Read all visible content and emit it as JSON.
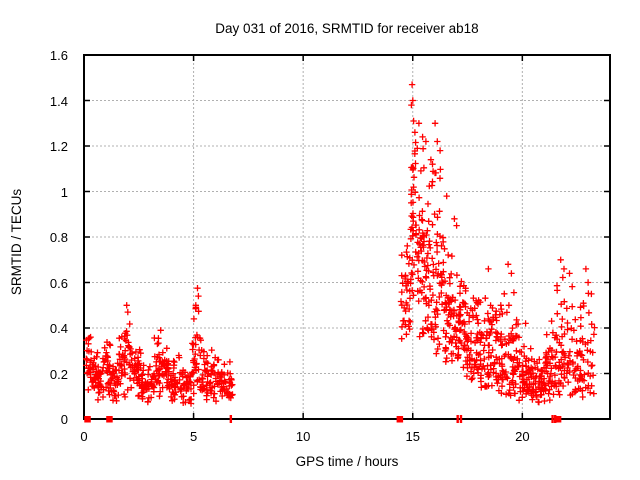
{
  "title": "Day 031 of 2016, SRMTID for receiver ab18",
  "x_axis": {
    "label": "GPS time / hours",
    "min": 0,
    "max": 24,
    "ticks": [
      {
        "v": 0,
        "label": "0"
      },
      {
        "v": 5,
        "label": "5"
      },
      {
        "v": 10,
        "label": "10"
      },
      {
        "v": 15,
        "label": "15"
      },
      {
        "v": 20,
        "label": "20"
      }
    ]
  },
  "y_axis": {
    "label": "SRMTID / TECUs",
    "min": 0,
    "max": 1.6,
    "ticks": [
      {
        "v": 0,
        "label": "0"
      },
      {
        "v": 0.2,
        "label": "0.2"
      },
      {
        "v": 0.4,
        "label": "0.4"
      },
      {
        "v": 0.6,
        "label": "0.6"
      },
      {
        "v": 0.8,
        "label": "0.8"
      },
      {
        "v": 1,
        "label": "1"
      },
      {
        "v": 1.2,
        "label": "1.2"
      },
      {
        "v": 1.4,
        "label": "1.4"
      },
      {
        "v": 1.6,
        "label": "1.6"
      }
    ]
  },
  "style": {
    "marker_color": "#ff0000",
    "grid_color": "#b0b0b0",
    "axis_color": "#000000",
    "background": "#ffffff"
  },
  "chart_data": {
    "type": "scatter",
    "title": "Day 031 of 2016, SRMTID for receiver ab18",
    "xlabel": "GPS time / hours",
    "ylabel": "SRMTID / TECUs",
    "xlim": [
      0,
      24
    ],
    "ylim": [
      0,
      1.6
    ],
    "grid": true,
    "legend": false,
    "marker": "plus",
    "series_name": "SRMTID",
    "max_point": {
      "x": 15.0,
      "y": 1.47
    },
    "data_gap_hours": [
      6.8,
      14.45
    ],
    "cluster_segments": [
      [
        0.1,
        0.45,
        0.09,
        0.37,
        1.0,
        30
      ],
      [
        0.45,
        0.9,
        0.07,
        0.32,
        1.1,
        42
      ],
      [
        0.9,
        1.2,
        0.1,
        0.36,
        1.0,
        26
      ],
      [
        1.2,
        1.6,
        0.06,
        0.26,
        1.1,
        30
      ],
      [
        1.6,
        2.1,
        0.09,
        0.5,
        1.3,
        40
      ],
      [
        2.1,
        2.6,
        0.1,
        0.34,
        1.1,
        42
      ],
      [
        2.6,
        3.2,
        0.05,
        0.26,
        1.1,
        46
      ],
      [
        3.2,
        3.8,
        0.08,
        0.39,
        1.2,
        46
      ],
      [
        3.8,
        4.4,
        0.07,
        0.31,
        1.2,
        40
      ],
      [
        4.4,
        4.9,
        0.05,
        0.23,
        1.1,
        34
      ],
      [
        4.9,
        5.35,
        0.1,
        0.55,
        1.4,
        36
      ],
      [
        5.35,
        5.9,
        0.08,
        0.36,
        1.3,
        40
      ],
      [
        5.9,
        6.45,
        0.07,
        0.29,
        1.2,
        38
      ],
      [
        6.45,
        6.8,
        0.08,
        0.26,
        1.2,
        22
      ],
      [
        14.45,
        14.7,
        0.3,
        0.75,
        1.2,
        16
      ],
      [
        14.7,
        14.9,
        0.3,
        0.85,
        1.3,
        18
      ],
      [
        14.9,
        15.15,
        0.35,
        1.35,
        1.0,
        36
      ],
      [
        15.15,
        15.5,
        0.35,
        1.28,
        1.4,
        38
      ],
      [
        15.5,
        15.9,
        0.32,
        1.25,
        1.7,
        45
      ],
      [
        15.9,
        16.4,
        0.28,
        1.2,
        1.8,
        50
      ],
      [
        16.4,
        16.9,
        0.24,
        0.9,
        1.7,
        52
      ],
      [
        16.9,
        17.45,
        0.2,
        0.8,
        1.6,
        55
      ],
      [
        17.45,
        18.05,
        0.16,
        0.62,
        1.5,
        55
      ],
      [
        18.05,
        18.65,
        0.13,
        0.65,
        1.6,
        55
      ],
      [
        18.65,
        19.25,
        0.11,
        0.62,
        1.6,
        55
      ],
      [
        19.25,
        19.85,
        0.1,
        0.58,
        1.6,
        55
      ],
      [
        19.85,
        20.45,
        0.07,
        0.38,
        1.6,
        52
      ],
      [
        20.45,
        21.05,
        0.06,
        0.32,
        1.5,
        50
      ],
      [
        21.05,
        21.55,
        0.08,
        0.5,
        1.7,
        45
      ],
      [
        21.55,
        22.1,
        0.1,
        0.68,
        1.7,
        45
      ],
      [
        22.1,
        22.7,
        0.09,
        0.6,
        1.6,
        42
      ],
      [
        22.7,
        23.3,
        0.08,
        0.66,
        1.8,
        34
      ]
    ],
    "notable_points": [
      [
        14.97,
        1.47
      ],
      [
        15.0,
        1.4
      ],
      [
        14.94,
        1.38
      ],
      [
        15.04,
        1.31
      ],
      [
        15.28,
        1.3
      ],
      [
        15.1,
        1.26
      ],
      [
        15.45,
        1.24
      ],
      [
        15.6,
        1.22
      ],
      [
        16.02,
        1.3
      ],
      [
        16.12,
        1.22
      ],
      [
        16.25,
        1.18
      ],
      [
        15.9,
        1.12
      ],
      [
        16.55,
        0.98
      ],
      [
        16.9,
        0.88
      ],
      [
        17.0,
        0.85
      ],
      [
        14.5,
        0.72
      ],
      [
        1.95,
        0.5
      ],
      [
        2.0,
        0.47
      ],
      [
        5.18,
        0.575
      ],
      [
        5.22,
        0.54
      ],
      [
        5.1,
        0.5
      ],
      [
        18.45,
        0.66
      ],
      [
        19.35,
        0.68
      ],
      [
        19.5,
        0.64
      ],
      [
        21.75,
        0.7
      ],
      [
        21.9,
        0.66
      ],
      [
        22.15,
        0.64
      ],
      [
        22.9,
        0.66
      ],
      [
        23.0,
        0.6
      ],
      [
        23.15,
        0.55
      ],
      [
        0.3,
        0.36
      ],
      [
        3.5,
        0.39
      ],
      [
        20.15,
        0.42
      ]
    ],
    "zero_axis_squares": [
      0.15,
      1.15,
      14.4,
      21.62
    ],
    "zero_axis_bars": [
      6.7,
      17.05,
      17.2,
      21.38,
      21.5
    ],
    "render_seed": 20160131
  }
}
